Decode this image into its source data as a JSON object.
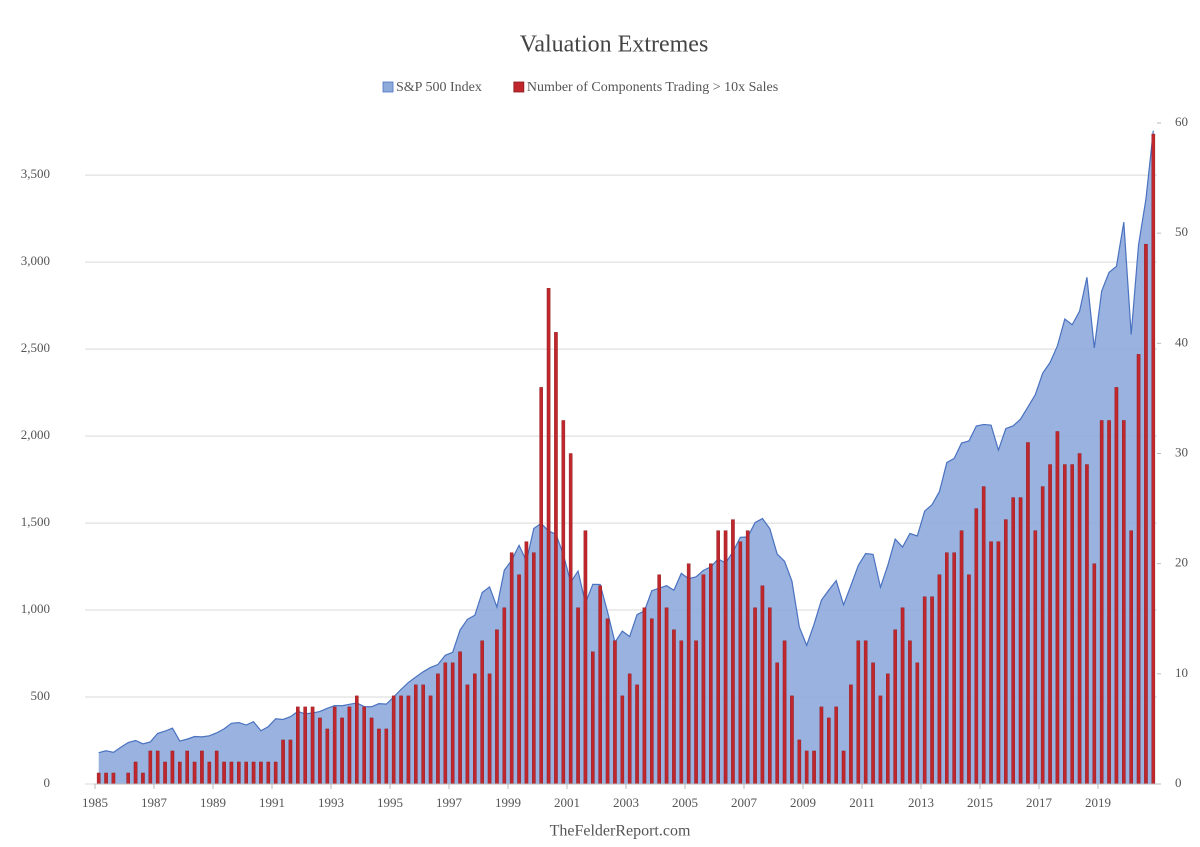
{
  "chart_data": {
    "type": "combo",
    "title": "Valuation Extremes",
    "source": "TheFelderReport.com",
    "categories": [
      "1985",
      null,
      null,
      null,
      null,
      null,
      null,
      null,
      "1987",
      null,
      null,
      null,
      null,
      null,
      null,
      null,
      "1989",
      null,
      null,
      null,
      null,
      null,
      null,
      null,
      "1991",
      null,
      null,
      null,
      null,
      null,
      null,
      null,
      "1993",
      null,
      null,
      null,
      null,
      null,
      null,
      null,
      "1995",
      null,
      null,
      null,
      null,
      null,
      null,
      null,
      "1997",
      null,
      null,
      null,
      null,
      null,
      null,
      null,
      "1999",
      null,
      null,
      null,
      null,
      null,
      null,
      null,
      "2001",
      null,
      null,
      null,
      null,
      null,
      null,
      null,
      "2003",
      null,
      null,
      null,
      null,
      null,
      null,
      null,
      "2005",
      null,
      null,
      null,
      null,
      null,
      null,
      null,
      "2007",
      null,
      null,
      null,
      null,
      null,
      null,
      null,
      "2009",
      null,
      null,
      null,
      null,
      null,
      null,
      null,
      "2011",
      null,
      null,
      null,
      null,
      null,
      null,
      null,
      "2013",
      null,
      null,
      null,
      null,
      null,
      null,
      null,
      "2015",
      null,
      null,
      null,
      null,
      null,
      null,
      null,
      "2017",
      null,
      null,
      null,
      null,
      null,
      null,
      null,
      "2019",
      null,
      null,
      null,
      null,
      null,
      null,
      null
    ],
    "series": [
      {
        "name": "S&P 500 Index",
        "type": "area",
        "color": "#8eaadb",
        "line_color": "#4a72c0",
        "values": [
          180,
          191,
          182,
          211,
          238,
          250,
          231,
          242,
          291,
          304,
          321,
          247,
          258,
          273,
          271,
          277,
          294,
          317,
          349,
          353,
          339,
          358,
          306,
          330,
          375,
          371,
          387,
          417,
          403,
          408,
          417,
          435,
          451,
          450,
          458,
          466,
          445,
          444,
          462,
          459,
          500,
          544,
          584,
          615,
          645,
          670,
          687,
          740,
          757,
          885,
          947,
          970,
          1101,
          1133,
          1017,
          1229,
          1286,
          1372,
          1282,
          1469,
          1498,
          1454,
          1436,
          1320,
          1160,
          1224,
          1040,
          1148,
          1147,
          989,
          815,
          879,
          848,
          974,
          995,
          1111,
          1126,
          1140,
          1114,
          1211,
          1180,
          1191,
          1228,
          1248,
          1294,
          1270,
          1335,
          1418,
          1420,
          1503,
          1526,
          1468,
          1322,
          1280,
          1166,
          903,
          797,
          919,
          1057,
          1115,
          1169,
          1030,
          1141,
          1257,
          1325,
          1320,
          1131,
          1257,
          1408,
          1362,
          1440,
          1426,
          1569,
          1606,
          1681,
          1848,
          1872,
          1960,
          1972,
          2058,
          2067,
          2063,
          1920,
          2043,
          2059,
          2098,
          2168,
          2238,
          2362,
          2423,
          2519,
          2673,
          2640,
          2718,
          2913,
          2506,
          2834,
          2941,
          2976,
          3230,
          2584,
          3100,
          3363,
          3756
        ]
      },
      {
        "name": "Number of Components Trading > 10x Sales",
        "type": "bar",
        "axis": "y2",
        "color": "#c0272d",
        "line_color": "#8b1a1e",
        "values": [
          1,
          1,
          1,
          0,
          1,
          2,
          1,
          3,
          3,
          2,
          3,
          2,
          3,
          2,
          3,
          2,
          3,
          2,
          2,
          2,
          2,
          2,
          2,
          2,
          2,
          4,
          4,
          7,
          7,
          7,
          6,
          5,
          7,
          6,
          7,
          8,
          7,
          6,
          5,
          5,
          8,
          8,
          8,
          9,
          9,
          8,
          10,
          11,
          11,
          12,
          9,
          10,
          13,
          10,
          14,
          16,
          21,
          19,
          22,
          21,
          36,
          45,
          41,
          33,
          30,
          16,
          23,
          12,
          18,
          15,
          13,
          8,
          10,
          9,
          16,
          15,
          19,
          16,
          14,
          13,
          20,
          13,
          19,
          20,
          23,
          23,
          24,
          22,
          23,
          16,
          18,
          16,
          11,
          13,
          8,
          4,
          3,
          3,
          7,
          6,
          7,
          3,
          9,
          13,
          13,
          11,
          8,
          10,
          14,
          16,
          13,
          11,
          17,
          17,
          19,
          21,
          21,
          23,
          19,
          25,
          27,
          22,
          22,
          24,
          26,
          26,
          31,
          23,
          27,
          29,
          32,
          29,
          29,
          30,
          29,
          20,
          33,
          33,
          36,
          33,
          23,
          39,
          49,
          59
        ]
      }
    ],
    "ylim": [
      0,
      3800
    ],
    "yticks": [
      0,
      500,
      {
        "value": 1000,
        "label": "1,000"
      },
      {
        "value": 1500,
        "label": "1,500"
      },
      {
        "value": 2000,
        "label": "2,000"
      },
      {
        "value": 2500,
        "label": "2,500"
      },
      {
        "value": 3000,
        "label": "3,000"
      },
      {
        "value": 3500,
        "label": "3,500"
      }
    ],
    "y2lim": [
      0,
      60
    ],
    "y2ticks": [
      0,
      10,
      20,
      30,
      40,
      50,
      60
    ],
    "grid": true
  }
}
